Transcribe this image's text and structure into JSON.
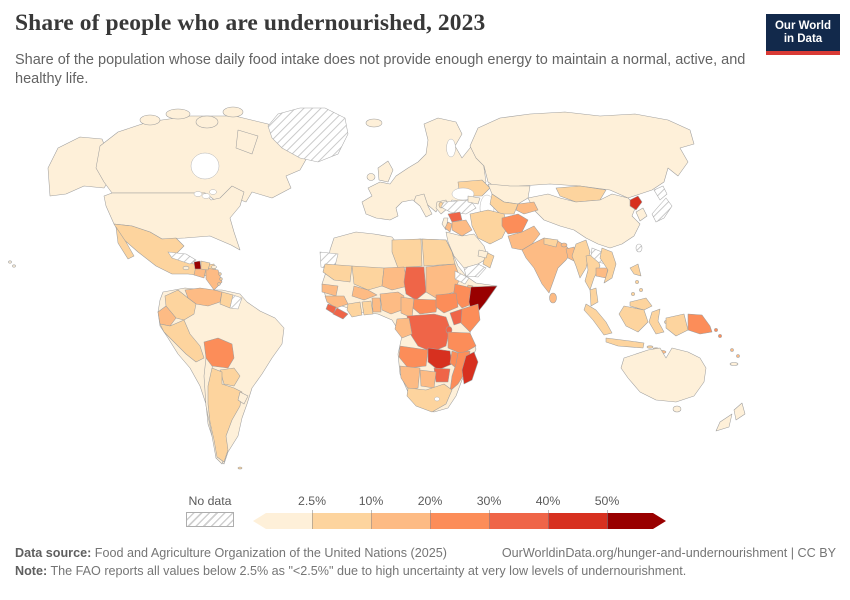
{
  "header": {
    "title": "Share of people who are undernourished, 2023",
    "subtitle": "Share of the population whose daily food intake does not provide enough energy to maintain a normal, active, and healthy life.",
    "logo": {
      "line1": "Our World",
      "line2": "in Data",
      "bg": "#12294b",
      "accent": "#d93a35"
    }
  },
  "footer": {
    "datasource_label": "Data source:",
    "datasource_text": " Food and Agriculture Organization of the United Nations (2025)",
    "url_text": "OurWorldinData.org/hunger-and-undernourishment | CC BY",
    "note_label": "Note:",
    "note_text": " The FAO reports all values below 2.5% as \"<2.5%\" due to high uncertainty at very low levels of undernourishment."
  },
  "chart_data": {
    "type": "heatmap",
    "subtype": "choropleth-world-map",
    "title": "Share of people who are undernourished, 2023",
    "year": 2023,
    "unit": "% of population",
    "legend": {
      "no_data_label": "No data",
      "tick_labels": [
        "2.5%",
        "10%",
        "20%",
        "30%",
        "40%",
        "50%"
      ],
      "bins": [
        {
          "label": "<2.5%",
          "color": "#fef0d9"
        },
        {
          "label": "2.5%-10%",
          "color": "#fdd49e"
        },
        {
          "label": "10%-20%",
          "color": "#fdbb84"
        },
        {
          "label": "20%-30%",
          "color": "#fc8d59"
        },
        {
          "label": "30%-40%",
          "color": "#ef6548"
        },
        {
          "label": "40%-50%",
          "color": "#d7301f"
        },
        {
          "label": ">50%",
          "color": "#990000"
        }
      ]
    },
    "no_data_regions": [
      "Greenland",
      "Cuba",
      "French Guiana",
      "Western Sahara",
      "Eritrea",
      "Turkey",
      "Yemen",
      "Japan",
      "Taiwan",
      "Laos",
      "Lesotho"
    ],
    "regions": {
      "canada": [
        "Canada",
        "<2.5%",
        "#fef0d9"
      ],
      "usa": [
        "United States",
        "<2.5%",
        "#fef0d9"
      ],
      "mexico": [
        "Mexico",
        "2.5%-10%",
        "#fdd49e"
      ],
      "guatemala": [
        "Guatemala",
        "10%-20%",
        "#fdbb84"
      ],
      "honduras-nicaragua": [
        "Honduras and Nicaragua",
        "10%-20%",
        "#fdbb84"
      ],
      "costa-rica-panama": [
        "Costa Rica and Panama",
        "2.5%-10%",
        "#fdd49e"
      ],
      "jamaica": [
        "Jamaica",
        "<2.5%",
        "#fef0d9"
      ],
      "haiti": [
        "Haiti",
        ">50%",
        "#990000"
      ],
      "dominican-republic": [
        "Dominican Republic",
        "2.5%-10%",
        "#fdd49e"
      ],
      "puerto-rico": [
        "Puerto Rico",
        "<2.5%",
        "#fef0d9"
      ],
      "lesser-antilles": [
        "Lesser Antilles",
        "2.5%-10%",
        "#fdd49e"
      ],
      "venezuela": [
        "Venezuela",
        "10%-20%",
        "#fdbb84"
      ],
      "colombia": [
        "Colombia",
        "2.5%-10%",
        "#fdd49e"
      ],
      "guyana-suriname": [
        "Guyana and Suriname",
        "2.5%-10%",
        "#fdd49e"
      ],
      "ecuador": [
        "Ecuador",
        "10%-20%",
        "#fdbb84"
      ],
      "peru": [
        "Peru",
        "2.5%-10%",
        "#fdd49e"
      ],
      "bolivia": [
        "Bolivia",
        "20%-30%",
        "#fc8d59"
      ],
      "brazil": [
        "Brazil",
        "<2.5%",
        "#fef0d9"
      ],
      "chile": [
        "Chile",
        "<2.5%",
        "#fef0d9"
      ],
      "paraguay": [
        "Paraguay",
        "2.5%-10%",
        "#fdd49e"
      ],
      "argentina": [
        "Argentina",
        "2.5%-10%",
        "#fdd49e"
      ],
      "uruguay": [
        "Uruguay",
        "<2.5%",
        "#fef0d9"
      ],
      "north-africa": [
        "Morocco, Algeria and Tunisia",
        "<2.5%",
        "#fef0d9"
      ],
      "libya": [
        "Libya",
        "2.5%-10%",
        "#fdd49e"
      ],
      "egypt": [
        "Egypt",
        "2.5%-10%",
        "#fdd49e"
      ],
      "mauritania": [
        "Mauritania",
        "2.5%-10%",
        "#fdd49e"
      ],
      "mali": [
        "Mali",
        "2.5%-10%",
        "#fdd49e"
      ],
      "niger": [
        "Niger",
        "10%-20%",
        "#fdbb84"
      ],
      "chad": [
        "Chad",
        "30%-40%",
        "#ef6548"
      ],
      "sudan": [
        "Sudan",
        "10%-20%",
        "#fdbb84"
      ],
      "djibouti": [
        "Djibouti",
        "10%-20%",
        "#fdbb84"
      ],
      "ethiopia": [
        "Ethiopia",
        "20%-30%",
        "#fc8d59"
      ],
      "somalia": [
        "Somalia",
        ">50%",
        "#990000"
      ],
      "senegal": [
        "Senegal and Gambia",
        "10%-20%",
        "#fdbb84"
      ],
      "guinea": [
        "Guinea",
        "10%-20%",
        "#fdbb84"
      ],
      "sierra-leone": [
        "Sierra Leone",
        "30%-40%",
        "#ef6548"
      ],
      "liberia": [
        "Liberia",
        "30%-40%",
        "#ef6548"
      ],
      "cote-divoire": [
        "Cote d'Ivoire",
        "2.5%-10%",
        "#fdd49e"
      ],
      "ghana": [
        "Ghana",
        "2.5%-10%",
        "#fdd49e"
      ],
      "togo-benin": [
        "Togo and Benin",
        "10%-20%",
        "#fdbb84"
      ],
      "burkina-faso": [
        "Burkina Faso",
        "10%-20%",
        "#fdbb84"
      ],
      "nigeria": [
        "Nigeria",
        "10%-20%",
        "#fdbb84"
      ],
      "cameroon": [
        "Cameroon",
        "10%-20%",
        "#fdbb84"
      ],
      "central-african-republic": [
        "Central African Republic",
        "20%-30%",
        "#fc8d59"
      ],
      "south-sudan": [
        "South Sudan",
        "20%-30%",
        "#fc8d59"
      ],
      "uganda": [
        "Uganda",
        "30%-40%",
        "#ef6548"
      ],
      "kenya": [
        "Kenya",
        "20%-30%",
        "#fc8d59"
      ],
      "drc": [
        "Democratic Republic of Congo",
        "30%-40%",
        "#ef6548"
      ],
      "congo-gabon": [
        "Congo and Gabon",
        "10%-20%",
        "#fdbb84"
      ],
      "rwanda-burundi": [
        "Rwanda and Burundi",
        "30%-40%",
        "#ef6548"
      ],
      "tanzania": [
        "Tanzania",
        "20%-30%",
        "#fc8d59"
      ],
      "angola": [
        "Angola",
        "20%-30%",
        "#fc8d59"
      ],
      "zambia": [
        "Zambia",
        "40%-50%",
        "#d7301f"
      ],
      "malawi": [
        "Malawi",
        "20%-30%",
        "#fc8d59"
      ],
      "mozambique": [
        "Mozambique",
        "20%-30%",
        "#fc8d59"
      ],
      "zimbabwe": [
        "Zimbabwe",
        "30%-40%",
        "#ef6548"
      ],
      "botswana": [
        "Botswana",
        "10%-20%",
        "#fdbb84"
      ],
      "namibia": [
        "Namibia",
        "10%-20%",
        "#fdbb84"
      ],
      "south-africa": [
        "South Africa",
        "2.5%-10%",
        "#fdd49e"
      ],
      "madagascar": [
        "Madagascar",
        "40%-50%",
        "#d7301f"
      ],
      "europe": [
        "Europe (most countries)",
        "<2.5%",
        "#fef0d9"
      ],
      "uk": [
        "United Kingdom",
        "<2.5%",
        "#fef0d9"
      ],
      "ireland": [
        "Ireland",
        "<2.5%",
        "#fef0d9"
      ],
      "iceland": [
        "Iceland",
        "<2.5%",
        "#fef0d9"
      ],
      "italy": [
        "Italy",
        "<2.5%",
        "#fef0d9"
      ],
      "greece": [
        "Greece",
        "<2.5%",
        "#fef0d9"
      ],
      "ukraine": [
        "Ukraine",
        "2.5%-10%",
        "#fdd49e"
      ],
      "albania": [
        "Albania",
        "2.5%-10%",
        "#fdd49e"
      ],
      "russia": [
        "Russia",
        "<2.5%",
        "#fef0d9"
      ],
      "kazakhstan": [
        "Kazakhstan",
        "<2.5%",
        "#fef0d9"
      ],
      "caucasus": [
        "Georgia, Armenia and Azerbaijan",
        "<2.5%",
        "#fef0d9"
      ],
      "mongolia": [
        "Mongolia",
        "2.5%-10%",
        "#fdd49e"
      ],
      "china": [
        "China",
        "<2.5%",
        "#fef0d9"
      ],
      "north-korea": [
        "North Korea",
        "40%-50%",
        "#d7301f"
      ],
      "south-korea": [
        "South Korea",
        "<2.5%",
        "#fef0d9"
      ],
      "turkmenistan-uzbekistan": [
        "Turkmenistan and Uzbekistan",
        "2.5%-10%",
        "#fdd49e"
      ],
      "kyrgyzstan-tajikistan": [
        "Kyrgyzstan and Tajikistan",
        "10%-20%",
        "#fdbb84"
      ],
      "syria": [
        "Syria",
        "30%-40%",
        "#ef6548"
      ],
      "iraq": [
        "Iraq",
        "10%-20%",
        "#fdbb84"
      ],
      "israel-lebanon": [
        "Israel and Lebanon",
        "<2.5%",
        "#fef0d9"
      ],
      "jordan": [
        "Jordan",
        "10%-20%",
        "#fdbb84"
      ],
      "saudi-arabia": [
        "Saudi Arabia",
        "<2.5%",
        "#fef0d9"
      ],
      "oman": [
        "Oman",
        "2.5%-10%",
        "#fdd49e"
      ],
      "uae": [
        "United Arab Emirates",
        "<2.5%",
        "#fef0d9"
      ],
      "iran": [
        "Iran",
        "2.5%-10%",
        "#fdd49e"
      ],
      "afghanistan": [
        "Afghanistan",
        "20%-30%",
        "#fc8d59"
      ],
      "pakistan": [
        "Pakistan",
        "10%-20%",
        "#fdbb84"
      ],
      "india": [
        "India",
        "10%-20%",
        "#fdbb84"
      ],
      "nepal": [
        "Nepal",
        "2.5%-10%",
        "#fdd49e"
      ],
      "bhutan": [
        "Bhutan",
        "10%-20%",
        "#fdbb84"
      ],
      "bangladesh": [
        "Bangladesh",
        "10%-20%",
        "#fdbb84"
      ],
      "sri-lanka": [
        "Sri Lanka",
        "10%-20%",
        "#fdbb84"
      ],
      "myanmar": [
        "Myanmar",
        "2.5%-10%",
        "#fdd49e"
      ],
      "thailand": [
        "Thailand",
        "2.5%-10%",
        "#fdd49e"
      ],
      "cambodia": [
        "Cambodia",
        "10%-20%",
        "#fdbb84"
      ],
      "vietnam": [
        "Vietnam",
        "2.5%-10%",
        "#fdd49e"
      ],
      "malaysia": [
        "Malaysia",
        "2.5%-10%",
        "#fdd49e"
      ],
      "indonesia": [
        "Indonesia",
        "2.5%-10%",
        "#fdd49e"
      ],
      "philippines": [
        "Philippines",
        "2.5%-10%",
        "#fdd49e"
      ],
      "timor-leste": [
        "Timor-Leste",
        "10%-20%",
        "#fdbb84"
      ],
      "west-papua": [
        "Indonesia (Papua)",
        "2.5%-10%",
        "#fdd49e"
      ],
      "papua-new-guinea": [
        "Papua New Guinea",
        "20%-30%",
        "#fc8d59"
      ],
      "solomon-islands": [
        "Solomon Islands",
        "20%-30%",
        "#fc8d59"
      ],
      "vanuatu-fiji": [
        "Vanuatu and Fiji",
        "10%-20%",
        "#fdbb84"
      ],
      "new-caledonia": [
        "New Caledonia",
        "<2.5%",
        "#fef0d9"
      ],
      "australia": [
        "Australia",
        "<2.5%",
        "#fef0d9"
      ],
      "new-zealand": [
        "New Zealand",
        "<2.5%",
        "#fef0d9"
      ]
    }
  }
}
